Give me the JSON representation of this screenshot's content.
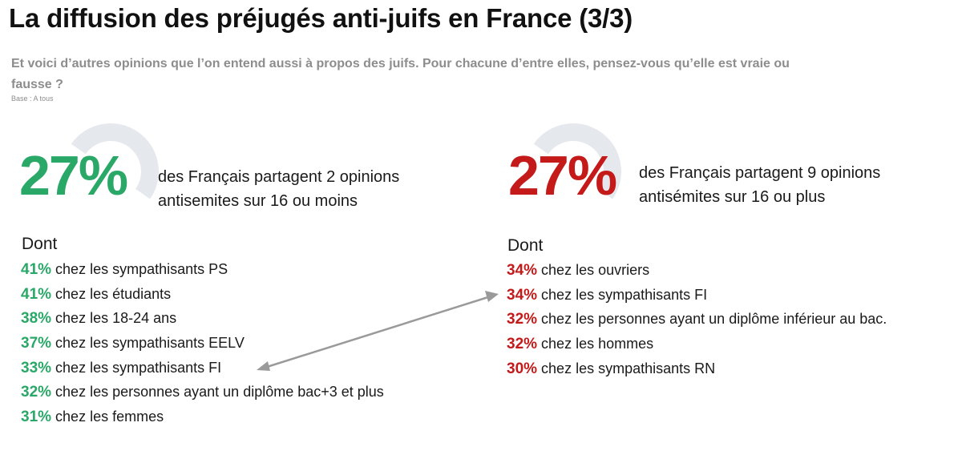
{
  "title": "La diffusion des préjugés anti-juifs en France (3/3)",
  "subtitle": "Et voici d’autres opinions que l’on entend aussi à propos des juifs. Pour chacune d’entre elles, pensez-vous qu’elle est vraie ou fausse ?",
  "base": "Base : A tous",
  "colors": {
    "green": "#2aa868",
    "red": "#c41a1a",
    "arrow": "#9a9a9a"
  },
  "left": {
    "big_value": "27%",
    "description_line1": "des Français partagent 2 opinions",
    "description_line2": "antisemites sur 16 ou moins",
    "dont": "Dont",
    "items": [
      {
        "pct": "41%",
        "label": "chez les sympathisants PS"
      },
      {
        "pct": "41%",
        "label": "chez les étudiants"
      },
      {
        "pct": "38%",
        "label": "chez les 18-24 ans"
      },
      {
        "pct": "37%",
        "label": "chez les sympathisants EELV"
      },
      {
        "pct": "33%",
        "label": "chez les sympathisants FI"
      },
      {
        "pct": "32%",
        "label": "chez les personnes ayant un diplôme bac+3 et plus"
      },
      {
        "pct": "31%",
        "label": "chez les femmes"
      }
    ]
  },
  "right": {
    "big_value": "27%",
    "description_line1": "des Français partagent 9 opinions",
    "description_line2": "antisémites sur 16 ou plus",
    "dont": "Dont",
    "items": [
      {
        "pct": "34%",
        "label": "chez les ouvriers"
      },
      {
        "pct": "34%",
        "label": "chez les sympathisants FI"
      },
      {
        "pct": "32%",
        "label": "chez les personnes ayant un diplôme inférieur au bac."
      },
      {
        "pct": "32%",
        "label": "chez les hommes"
      },
      {
        "pct": "30%",
        "label": "chez les sympathisants RN"
      }
    ]
  }
}
